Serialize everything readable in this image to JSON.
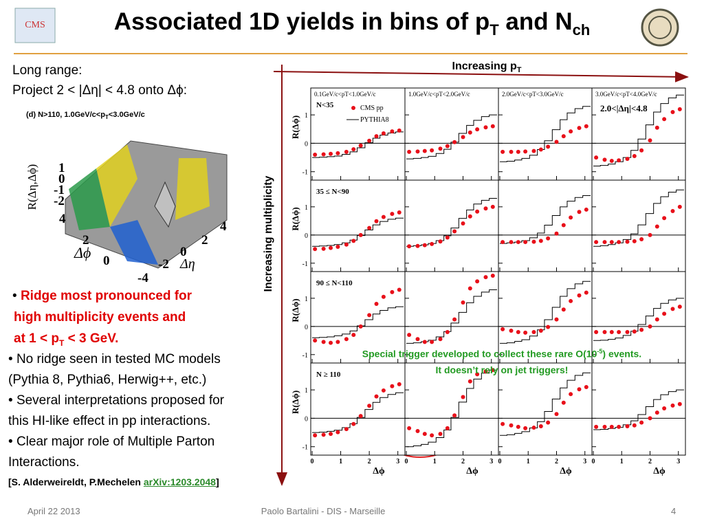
{
  "header": {
    "title_a": "Associated 1D yields in bins of p",
    "title_sub1": "T",
    "title_b": " and N",
    "title_sub2": "ch",
    "logo": "CMS"
  },
  "left": {
    "line1": "Long range:",
    "line2": "Project 2 < |Δη| < 4.8 onto Δϕ:",
    "inset": {
      "caption": "(d) N>110, 1.0GeV/c<p",
      "caption_sub": "T",
      "caption_b": "<3.0GeV/c",
      "zlabel": "R(Δη,Δϕ)",
      "zticks": [
        "1",
        "0",
        "-1",
        "-2"
      ],
      "phi_label": "Δϕ",
      "phi_ticks": [
        "4",
        "2",
        "0"
      ],
      "eta_label": "Δη",
      "eta_ticks": [
        "4",
        "2",
        "0",
        "-2",
        "-4"
      ]
    },
    "b1a": "Ridge most pronounced for",
    "b1b": "high multiplicity events and",
    "b1c_a": "at 1 < p",
    "b1c_sub": "T",
    "b1c_b": " < 3 GeV.",
    "b2a": "No ridge seen in tested MC models",
    "b2b": "(Pythia 8, Pythia6, Herwig++, etc.)",
    "b3a": "Several interpretations proposed for",
    "b3b": "this HI-like effect in pp interactions.",
    "b4a": "Clear major role of Multiple Parton",
    "b4b": "Interactions.",
    "ref_a": "[S. Alderweireldt, P.Mechelen ",
    "ref_link": "arXiv:1203.2048",
    "ref_b": "]"
  },
  "figure": {
    "top_label": "Increasing p",
    "top_label_sub": "T",
    "side_label": "Increasing multiplicity",
    "legend": [
      "CMS pp",
      "PYTHIA8"
    ],
    "deta": "2.0<|Δη|<4.8",
    "pt_bins": [
      "0.1GeV/c<pT<1.0GeV/c",
      "1.0GeV/c<pT<2.0GeV/c",
      "2.0GeV/c<pT<3.0GeV/c",
      "3.0GeV/c<pT<4.0GeV/c"
    ],
    "mult_bins": [
      "N<35",
      "35 ≤ N<90",
      "90 ≤ N<110",
      "N ≥ 110"
    ],
    "x_axis_label": "Δϕ",
    "y_axis_label": "R(Δϕ)",
    "xlim": [
      0,
      3.2
    ],
    "ylim": [
      -1.2,
      1.85
    ],
    "xticks": [
      0,
      1,
      2,
      3
    ],
    "yticks": [
      -1,
      0,
      1
    ],
    "x": [
      0.1,
      0.4,
      0.65,
      0.9,
      1.2,
      1.45,
      1.7,
      2.0,
      2.25,
      2.5,
      2.8,
      3.05
    ],
    "panels": [
      {
        "cms": [
          -0.4,
          -0.39,
          -0.37,
          -0.35,
          -0.3,
          -0.21,
          -0.08,
          0.09,
          0.25,
          0.35,
          0.42,
          0.45
        ],
        "pythia": [
          -0.5,
          -0.49,
          -0.47,
          -0.45,
          -0.39,
          -0.3,
          -0.16,
          0.02,
          0.18,
          0.29,
          0.36,
          0.4
        ]
      },
      {
        "cms": [
          -0.3,
          -0.29,
          -0.27,
          -0.25,
          -0.19,
          -0.1,
          0.04,
          0.22,
          0.38,
          0.49,
          0.56,
          0.6
        ],
        "pythia": [
          -0.55,
          -0.53,
          -0.5,
          -0.46,
          -0.36,
          -0.21,
          0.04,
          0.35,
          0.63,
          0.81,
          0.94,
          1.0
        ]
      },
      {
        "cms": [
          -0.3,
          -0.3,
          -0.3,
          -0.29,
          -0.27,
          -0.22,
          -0.12,
          0.05,
          0.25,
          0.42,
          0.54,
          0.6
        ],
        "pythia": [
          -0.65,
          -0.63,
          -0.59,
          -0.53,
          -0.42,
          -0.22,
          0.09,
          0.48,
          0.83,
          1.07,
          1.22,
          1.3
        ]
      },
      {
        "cms": [
          -0.5,
          -0.58,
          -0.62,
          -0.6,
          -0.55,
          -0.45,
          -0.25,
          0.1,
          0.55,
          0.85,
          1.1,
          1.2
        ],
        "pythia": [
          -0.8,
          -0.78,
          -0.73,
          -0.65,
          -0.5,
          -0.25,
          0.15,
          0.65,
          1.1,
          1.4,
          1.6,
          1.7
        ]
      },
      {
        "cms": [
          -0.5,
          -0.49,
          -0.46,
          -0.42,
          -0.34,
          -0.21,
          0.0,
          0.25,
          0.49,
          0.64,
          0.75,
          0.8
        ],
        "pythia": [
          -0.4,
          -0.39,
          -0.37,
          -0.34,
          -0.28,
          -0.18,
          -0.02,
          0.18,
          0.36,
          0.48,
          0.56,
          0.6
        ]
      },
      {
        "cms": [
          -0.4,
          -0.39,
          -0.36,
          -0.32,
          -0.23,
          -0.09,
          0.13,
          0.41,
          0.66,
          0.83,
          0.94,
          1.0
        ],
        "pythia": [
          -0.4,
          -0.38,
          -0.35,
          -0.3,
          -0.2,
          -0.03,
          0.25,
          0.59,
          0.89,
          1.1,
          1.23,
          1.3
        ]
      },
      {
        "cms": [
          -0.25,
          -0.25,
          -0.25,
          -0.25,
          -0.24,
          -0.21,
          -0.12,
          0.05,
          0.35,
          0.62,
          0.82,
          0.9
        ],
        "pythia": [
          -0.3,
          -0.28,
          -0.25,
          -0.2,
          -0.1,
          0.07,
          0.35,
          0.69,
          1.0,
          1.2,
          1.33,
          1.4
        ]
      },
      {
        "cms": [
          -0.25,
          -0.25,
          -0.25,
          -0.25,
          -0.24,
          -0.22,
          -0.15,
          0.0,
          0.3,
          0.6,
          0.85,
          1.0
        ],
        "pythia": [
          -0.4,
          -0.38,
          -0.34,
          -0.28,
          -0.16,
          0.04,
          0.36,
          0.76,
          1.12,
          1.36,
          1.52,
          1.6
        ]
      },
      {
        "cms": [
          -0.5,
          -0.55,
          -0.58,
          -0.55,
          -0.45,
          -0.3,
          0.0,
          0.4,
          0.8,
          1.05,
          1.22,
          1.3
        ],
        "pythia": [
          -0.4,
          -0.39,
          -0.37,
          -0.33,
          -0.27,
          -0.16,
          0.02,
          0.24,
          0.44,
          0.57,
          0.66,
          0.7
        ]
      },
      {
        "cms": [
          -0.3,
          -0.45,
          -0.55,
          -0.55,
          -0.45,
          -0.2,
          0.25,
          0.85,
          1.35,
          1.6,
          1.75,
          1.8
        ],
        "pythia": [
          -0.6,
          -0.58,
          -0.54,
          -0.49,
          -0.37,
          -0.18,
          0.12,
          0.5,
          0.84,
          1.07,
          1.22,
          1.3
        ]
      },
      {
        "cms": [
          -0.1,
          -0.15,
          -0.2,
          -0.22,
          -0.2,
          -0.15,
          -0.02,
          0.25,
          0.6,
          0.9,
          1.1,
          1.2
        ],
        "pythia": [
          -0.6,
          -0.58,
          -0.53,
          -0.47,
          -0.34,
          -0.12,
          0.24,
          0.68,
          1.07,
          1.34,
          1.51,
          1.6
        ]
      },
      {
        "cms": [
          -0.2,
          -0.2,
          -0.2,
          -0.2,
          -0.2,
          -0.18,
          -0.12,
          0.0,
          0.25,
          0.45,
          0.62,
          0.7
        ],
        "pythia": [
          -0.5,
          -0.49,
          -0.46,
          -0.41,
          -0.32,
          -0.17,
          0.07,
          0.37,
          0.64,
          0.82,
          0.94,
          1.0
        ]
      },
      {
        "cms": [
          -0.6,
          -0.58,
          -0.55,
          -0.49,
          -0.38,
          -0.2,
          0.08,
          0.44,
          0.77,
          0.98,
          1.13,
          1.2
        ],
        "pythia": [
          -0.5,
          -0.49,
          -0.46,
          -0.42,
          -0.33,
          -0.19,
          0.03,
          0.31,
          0.56,
          0.73,
          0.84,
          0.9
        ]
      },
      {
        "cms": [
          -0.35,
          -0.45,
          -0.55,
          -0.6,
          -0.55,
          -0.35,
          0.1,
          0.75,
          1.3,
          1.55,
          1.65,
          1.7
        ],
        "pythia": [
          -1.0,
          -0.97,
          -0.92,
          -0.84,
          -0.68,
          -0.41,
          0.03,
          0.57,
          1.05,
          1.38,
          1.59,
          1.7
        ]
      },
      {
        "cms": [
          -0.2,
          -0.25,
          -0.3,
          -0.35,
          -0.33,
          -0.28,
          -0.15,
          0.15,
          0.55,
          0.85,
          1.02,
          1.1
        ],
        "pythia": [
          -0.6,
          -0.58,
          -0.53,
          -0.47,
          -0.34,
          -0.12,
          0.24,
          0.68,
          1.07,
          1.34,
          1.51,
          1.6
        ]
      },
      {
        "cms": [
          -0.3,
          -0.3,
          -0.3,
          -0.3,
          -0.28,
          -0.25,
          -0.15,
          0.0,
          0.2,
          0.35,
          0.45,
          0.5
        ],
        "pythia": [
          -0.4,
          -0.39,
          -0.36,
          -0.32,
          -0.23,
          -0.09,
          0.13,
          0.41,
          0.66,
          0.83,
          0.94,
          1.0
        ]
      }
    ]
  },
  "note": {
    "a": "Special trigger developed to collect these rare O(10",
    "sup": "-5",
    "b": ") events.",
    "line2": "It doesn’t rely on jet triggers!"
  },
  "footer": {
    "date": "April 22 2013",
    "author": "Paolo Bartalini - DIS - Marseille",
    "page": "4"
  }
}
